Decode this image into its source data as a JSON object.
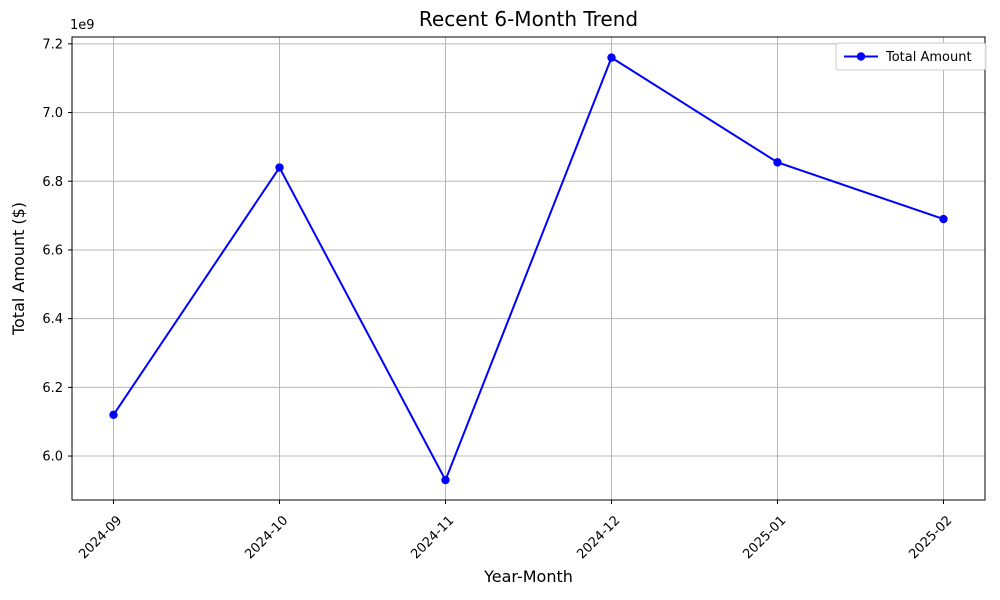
{
  "chart_data": {
    "type": "line",
    "title": "Recent 6-Month Trend",
    "xlabel": "Year-Month",
    "ylabel": "Total Amount ($)",
    "offset_label": "1e9",
    "categories": [
      "2024-09",
      "2024-10",
      "2024-11",
      "2024-12",
      "2025-01",
      "2025-02"
    ],
    "series": [
      {
        "name": "Total Amount",
        "color": "#0000ff",
        "values": [
          6120000000.0,
          6840000000.0,
          5930000000.0,
          7160000000.0,
          6855000000.0,
          6690000000.0
        ]
      }
    ],
    "ylim": [
      5872000000.0,
      7220000000.0
    ],
    "yticks": [
      6000000000.0,
      6200000000.0,
      6400000000.0,
      6600000000.0,
      6800000000.0,
      7000000000.0,
      7200000000.0
    ],
    "ytick_labels": [
      "6.0",
      "6.2",
      "6.4",
      "6.6",
      "6.8",
      "7.0",
      "7.2"
    ],
    "xtick_rotation_deg": 45,
    "grid": true,
    "grid_color": "#b8b8b8",
    "spine_color": "#000000",
    "background_color": "#ffffff",
    "legend": {
      "position": "upper right",
      "entries": [
        {
          "label": "Total Amount",
          "color": "#0000ff",
          "marker": "circle"
        }
      ]
    }
  }
}
